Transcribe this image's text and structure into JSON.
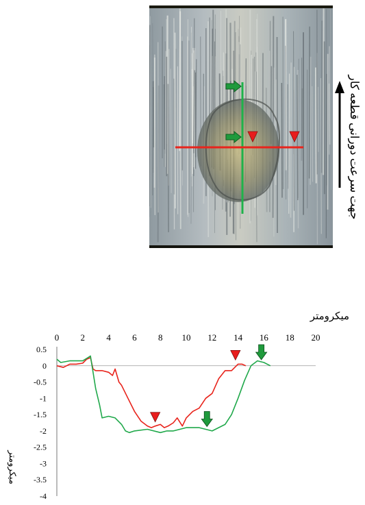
{
  "direction_label": "جهت سرعت دورانی قطعه کار",
  "colors": {
    "red_profile": "#e8221a",
    "green_profile": "#1fa84a",
    "marker_red": "#e81d1d",
    "marker_green": "#1f9a3c"
  },
  "chart_data": {
    "type": "line",
    "xlabel": "میکرومتر",
    "ylabel": "میکرومتر",
    "xlim": [
      0,
      20
    ],
    "ylim": [
      -4,
      0.5
    ],
    "x_ticks": [
      "0",
      "2",
      "4",
      "6",
      "8",
      "10",
      "12",
      "14",
      "16",
      "18",
      "20"
    ],
    "y_ticks": [
      "0.5",
      "0",
      "-0.5",
      "-1",
      "-1.5",
      "-2",
      "-2.5",
      "-3",
      "-3.5",
      "-4"
    ],
    "grid": false,
    "series": [
      {
        "color": "red",
        "x": [
          0,
          0.5,
          1,
          1.5,
          2,
          2.3,
          2.6,
          2.8,
          3,
          3.5,
          4,
          4.3,
          4.5,
          4.8,
          5,
          5.5,
          6,
          6.5,
          7,
          7.3,
          7.6,
          8,
          8.3,
          8.6,
          9,
          9.3,
          9.7,
          10,
          10.5,
          11,
          11.5,
          12,
          12.5,
          13,
          13.5,
          14,
          14.3,
          14.6
        ],
        "y": [
          0,
          -0.05,
          0.05,
          0.05,
          0.08,
          0.2,
          0.25,
          -0.1,
          -0.15,
          -0.15,
          -0.2,
          -0.3,
          -0.1,
          -0.5,
          -0.6,
          -1.0,
          -1.4,
          -1.7,
          -1.85,
          -1.9,
          -1.85,
          -1.8,
          -1.9,
          -1.85,
          -1.75,
          -1.6,
          -1.85,
          -1.6,
          -1.4,
          -1.3,
          -1.0,
          -0.85,
          -0.4,
          -0.15,
          -0.15,
          0.05,
          0.05,
          0
        ]
      },
      {
        "color": "green",
        "x": [
          0,
          0.3,
          1,
          2,
          2.4,
          2.6,
          2.8,
          3,
          3.3,
          3.5,
          4,
          4.5,
          5,
          5.3,
          5.6,
          6,
          7,
          8,
          8.5,
          9,
          10,
          11,
          11.5,
          12,
          12.5,
          13,
          13.5,
          14,
          14.5,
          15,
          15.5,
          16,
          16.5
        ],
        "y": [
          0.2,
          0.1,
          0.15,
          0.15,
          0.25,
          0.3,
          -0.2,
          -0.7,
          -1.2,
          -1.6,
          -1.55,
          -1.6,
          -1.8,
          -2.0,
          -2.05,
          -2.0,
          -1.95,
          -2.05,
          -2.0,
          -2.0,
          -1.9,
          -1.9,
          -1.95,
          -2.0,
          -1.9,
          -1.8,
          -1.5,
          -1.0,
          -0.45,
          0.0,
          0.15,
          0.1,
          0
        ]
      }
    ],
    "markers": [
      {
        "kind": "triangle",
        "color": "red",
        "x": 7.6,
        "y": -1.85
      },
      {
        "kind": "triangle",
        "color": "red",
        "x": 13.8,
        "y": 0.05
      },
      {
        "kind": "arrow",
        "color": "green",
        "x": 11.6,
        "y": -1.95
      },
      {
        "kind": "arrow",
        "color": "green",
        "x": 15.8,
        "y": 0.1
      }
    ]
  }
}
